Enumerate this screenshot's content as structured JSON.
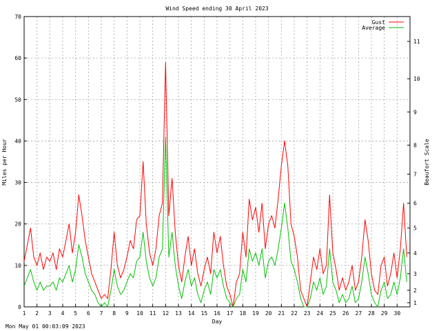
{
  "footer": {
    "timestamp": "Mon May 01 00:03:09 2023"
  },
  "colors": {
    "gust": "#ff0000",
    "average": "#00c000",
    "grid": "#a0a0a0"
  },
  "chart_data": {
    "type": "line",
    "title": "Wind Speed ending 30 April 2023",
    "xlabel": "Day",
    "ylabel": "Miles per Hour",
    "y2label": "Beaufort Scale",
    "xlim": [
      1,
      31
    ],
    "ylim": [
      0,
      70
    ],
    "grid": true,
    "legend_position": "top-right",
    "x_ticks": [
      "1",
      "2",
      "3",
      "4",
      "5",
      "6",
      "7",
      "8",
      "9",
      "10",
      "11",
      "12",
      "13",
      "14",
      "15",
      "16",
      "17",
      "18",
      "19",
      "20",
      "21",
      "22",
      "23",
      "24",
      "25",
      "26",
      "27",
      "28",
      "29",
      "30"
    ],
    "y_ticks": [
      "0",
      "10",
      "20",
      "30",
      "40",
      "50",
      "60",
      "70"
    ],
    "beaufort_ticks": [
      {
        "label": "1",
        "mph": 1
      },
      {
        "label": "2",
        "mph": 4
      },
      {
        "label": "3",
        "mph": 8
      },
      {
        "label": "4",
        "mph": 13
      },
      {
        "label": "5",
        "mph": 19
      },
      {
        "label": "6",
        "mph": 25
      },
      {
        "label": "7",
        "mph": 32
      },
      {
        "label": "8",
        "mph": 39
      },
      {
        "label": "9",
        "mph": 47
      },
      {
        "label": "10",
        "mph": 55
      },
      {
        "label": "11",
        "mph": 64
      }
    ],
    "x": [
      1.0,
      1.25,
      1.5,
      1.75,
      2.0,
      2.25,
      2.5,
      2.75,
      3.0,
      3.25,
      3.5,
      3.75,
      4.0,
      4.25,
      4.5,
      4.75,
      5.0,
      5.25,
      5.5,
      5.75,
      6.0,
      6.25,
      6.5,
      6.75,
      7.0,
      7.25,
      7.5,
      7.75,
      8.0,
      8.25,
      8.5,
      8.75,
      9.0,
      9.25,
      9.5,
      9.75,
      10.0,
      10.25,
      10.5,
      10.75,
      11.0,
      11.25,
      11.5,
      11.75,
      12.0,
      12.25,
      12.5,
      12.75,
      13.0,
      13.25,
      13.5,
      13.75,
      14.0,
      14.25,
      14.5,
      14.75,
      15.0,
      15.25,
      15.5,
      15.75,
      16.0,
      16.25,
      16.5,
      16.75,
      17.0,
      17.25,
      17.5,
      17.75,
      18.0,
      18.25,
      18.5,
      18.75,
      19.0,
      19.25,
      19.5,
      19.75,
      20.0,
      20.25,
      20.5,
      20.75,
      21.0,
      21.25,
      21.5,
      21.75,
      22.0,
      22.25,
      22.5,
      22.75,
      23.0,
      23.25,
      23.5,
      23.75,
      24.0,
      24.25,
      24.5,
      24.75,
      25.0,
      25.25,
      25.5,
      25.75,
      26.0,
      26.25,
      26.5,
      26.75,
      27.0,
      27.25,
      27.5,
      27.75,
      28.0,
      28.25,
      28.5,
      28.75,
      29.0,
      29.25,
      29.5,
      29.75,
      30.0,
      30.25,
      30.5,
      30.75
    ],
    "series": [
      {
        "name": "Gust",
        "values": [
          11,
          15,
          19,
          12,
          10,
          13,
          9,
          12,
          11,
          13,
          9,
          14,
          12,
          16,
          20,
          13,
          18,
          27,
          22,
          16,
          12,
          8,
          6,
          4,
          2,
          3,
          2,
          9,
          18,
          10,
          7,
          9,
          12,
          16,
          14,
          21,
          22,
          35,
          20,
          13,
          10,
          14,
          22,
          25,
          59,
          22,
          31,
          18,
          10,
          6,
          12,
          17,
          10,
          14,
          8,
          5,
          9,
          12,
          8,
          18,
          13,
          17,
          10,
          5,
          3,
          0,
          6,
          8,
          18,
          12,
          26,
          21,
          24,
          18,
          25,
          14,
          20,
          22,
          19,
          26,
          34,
          40,
          34,
          20,
          17,
          12,
          4,
          2,
          0,
          6,
          12,
          9,
          14,
          8,
          10,
          27,
          13,
          9,
          4,
          7,
          4,
          6,
          10,
          4,
          6,
          12,
          21,
          16,
          8,
          4,
          3,
          10,
          12,
          5,
          8,
          13,
          7,
          14,
          25,
          12
        ]
      },
      {
        "name": "Average",
        "values": [
          5,
          7,
          9,
          6,
          4,
          6,
          4,
          5,
          5,
          6,
          4,
          7,
          6,
          8,
          10,
          6,
          9,
          15,
          12,
          8,
          6,
          4,
          3,
          1,
          0,
          1,
          0,
          4,
          9,
          5,
          3,
          4,
          6,
          8,
          7,
          11,
          12,
          18,
          11,
          7,
          5,
          7,
          12,
          14,
          41,
          12,
          18,
          10,
          5,
          2,
          6,
          9,
          5,
          7,
          3,
          1,
          4,
          6,
          3,
          9,
          7,
          9,
          5,
          2,
          1,
          0,
          2,
          3,
          9,
          6,
          14,
          11,
          13,
          10,
          14,
          7,
          11,
          12,
          10,
          14,
          19,
          25,
          19,
          11,
          9,
          6,
          2,
          0,
          0,
          2,
          6,
          4,
          7,
          3,
          5,
          14,
          6,
          4,
          1,
          3,
          1,
          2,
          5,
          1,
          2,
          6,
          12,
          8,
          3,
          1,
          0,
          4,
          6,
          2,
          3,
          6,
          3,
          7,
          14,
          6
        ]
      }
    ]
  }
}
